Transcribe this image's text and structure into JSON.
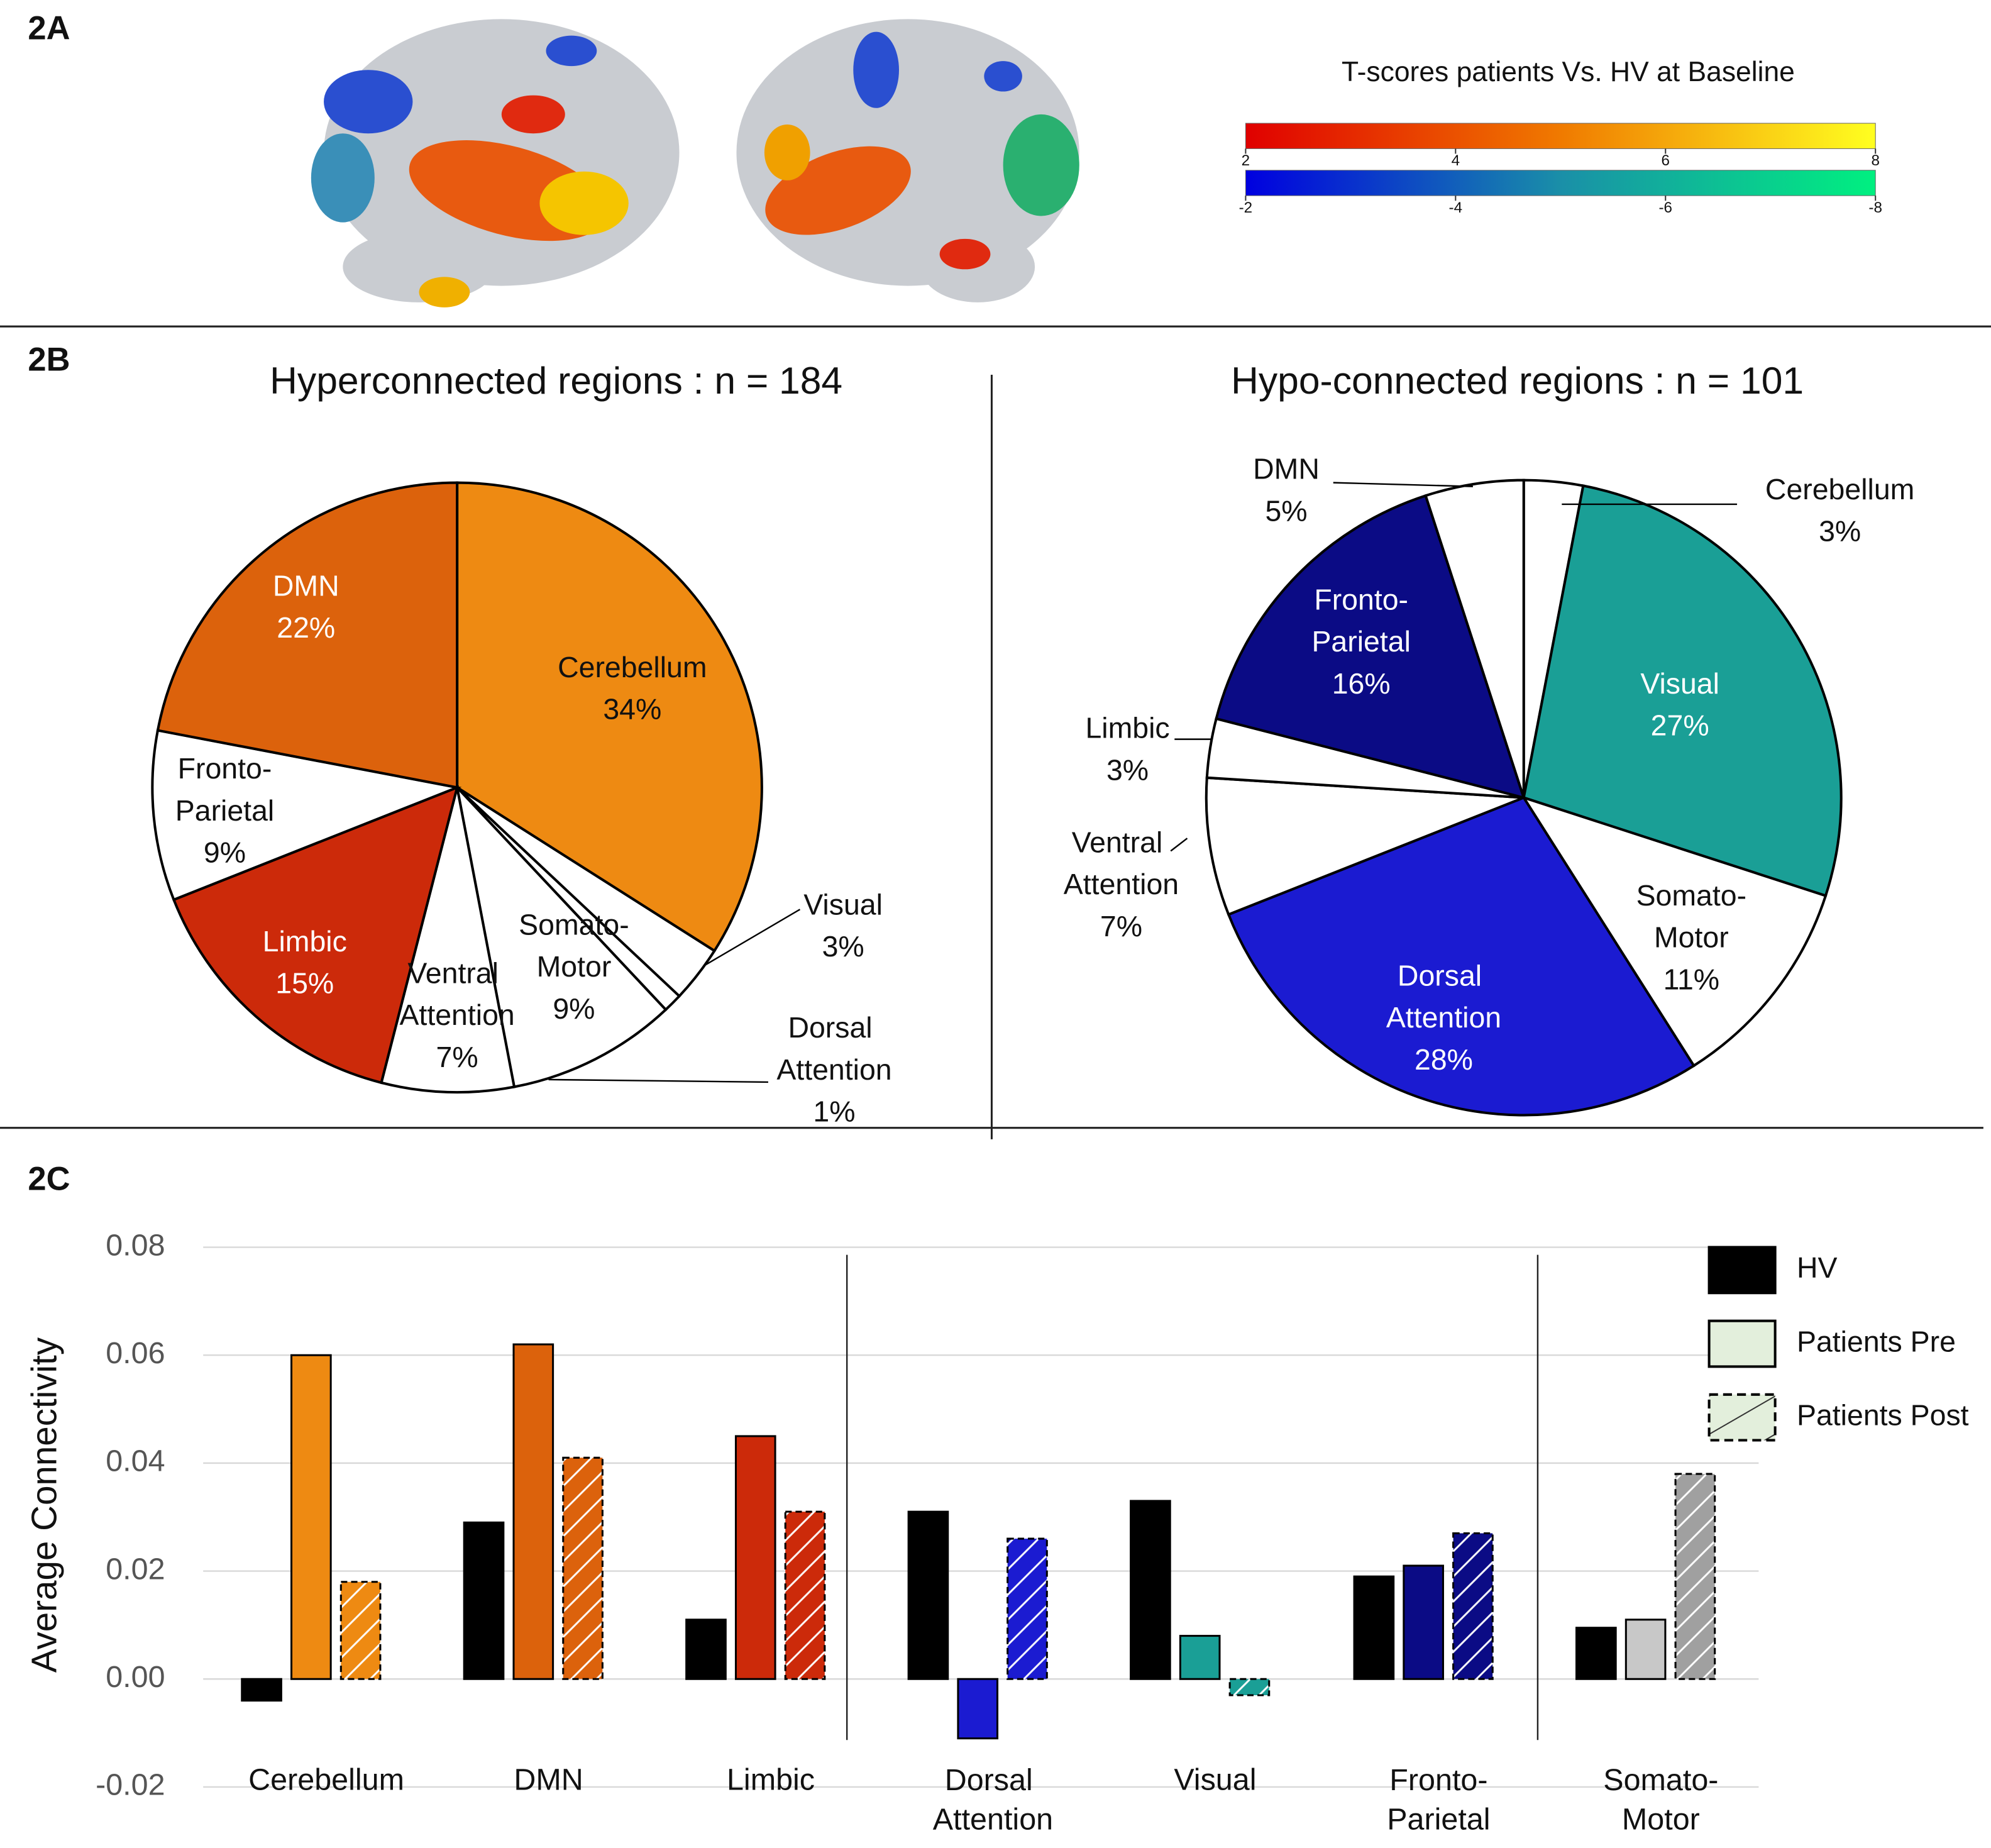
{
  "chart_data": [
    {
      "type": "colorbar",
      "panel": "2A",
      "title": "T-scores patients Vs. HV at Baseline",
      "scales": [
        {
          "colors": [
            "#e00000",
            "#f07a00",
            "#ffff20"
          ],
          "lim": [
            2,
            8
          ],
          "ticks": [
            2,
            4,
            6,
            8
          ]
        },
        {
          "colors": [
            "#0000e0",
            "#1a8fa8",
            "#00f080"
          ],
          "lim": [
            -2,
            -8
          ],
          "ticks": [
            -2,
            -4,
            -6,
            -8
          ]
        }
      ]
    },
    {
      "type": "pie",
      "panel": "2B",
      "title": "Hyperconnected regions : n = 184",
      "categories": [
        "Cerebellum",
        "Visual",
        "Dorsal Attention",
        "Somato-Motor",
        "Ventral Attention",
        "Limbic",
        "Fronto-Parietal",
        "DMN"
      ],
      "values": [
        34,
        3,
        1,
        9,
        7,
        15,
        9,
        22
      ],
      "value_labels": [
        "34%",
        "3%",
        "1%",
        "9%",
        "7%",
        "15%",
        "9%",
        "22%"
      ],
      "colors": [
        "#ee8a12",
        "#ffffff",
        "#ffffff",
        "#ffffff",
        "#ffffff",
        "#cc2a0a",
        "#ffffff",
        "#dc620c"
      ]
    },
    {
      "type": "pie",
      "title": "Hypo-connected regions : n = 101",
      "categories": [
        "Cerebellum",
        "Visual",
        "Somato-Motor",
        "Dorsal Attention",
        "Ventral Attention",
        "Limbic",
        "Fronto-Parietal",
        "DMN"
      ],
      "values": [
        3,
        27,
        11,
        28,
        7,
        3,
        16,
        5
      ],
      "value_labels": [
        "3%",
        "27%",
        "11%",
        "28%",
        "7%",
        "3%",
        "16%",
        "5%"
      ],
      "colors": [
        "#ffffff",
        "#1a9f96",
        "#ffffff",
        "#1b1bd1",
        "#ffffff",
        "#ffffff",
        "#0b0b85",
        "#ffffff"
      ]
    },
    {
      "type": "bar",
      "panel": "2C",
      "ylabel": "Average Connectivity",
      "categories": [
        "Cerebellum",
        "DMN",
        "Limbic",
        "Dorsal Attention",
        "Visual",
        "Fronto-Parietal",
        "Somato-Motor"
      ],
      "ylim": [
        -0.02,
        0.08
      ],
      "yticks": [
        -0.02,
        {
          "value": 0,
          "label": "0.00"
        },
        0.02,
        0.04,
        0.06,
        0.08
      ],
      "grid": true,
      "legend": "upper right",
      "series": [
        {
          "name": "HV",
          "color": "#000000",
          "values": [
            -0.004,
            0.029,
            0.011,
            0.031,
            0.033,
            0.019,
            0.0095
          ]
        },
        {
          "name": "Patients Pre",
          "color": "#e3efdc",
          "colors": [
            "#ee8a12",
            "#dc620c",
            "#cc2a0a",
            "#1b1bd1",
            "#1a9f96",
            "#0b0b85",
            "#c8c8c8"
          ],
          "values": [
            0.06,
            0.062,
            0.045,
            -0.011,
            0.008,
            0.021,
            0.011
          ]
        },
        {
          "name": "Patients Post",
          "color": "#e3efdc",
          "colors": [
            "#ee8a12",
            "#dc620c",
            "#cc2a0a",
            "#1b1bd1",
            "#1a9f96",
            "#0b0b85",
            "#a0a0a0"
          ],
          "hatch": true,
          "dashed": true,
          "values": [
            0.018,
            0.041,
            0.031,
            0.026,
            -0.003,
            0.027,
            0.038
          ]
        }
      ]
    }
  ]
}
